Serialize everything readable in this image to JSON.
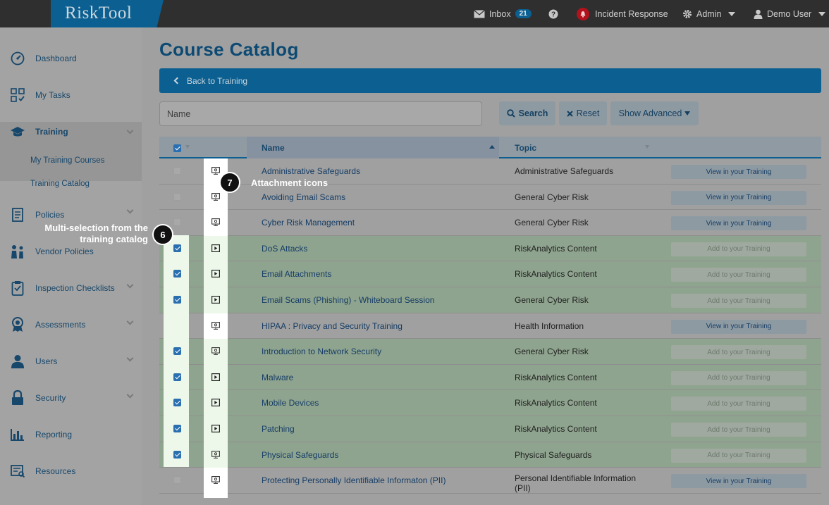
{
  "app": {
    "logo": "RiskTool"
  },
  "topnav": {
    "inbox_label": "Inbox",
    "inbox_count": "21",
    "incident_label": "Incident Response",
    "admin_label": "Admin",
    "user_label": "Demo User"
  },
  "sidebar": {
    "items": [
      {
        "label": "Dashboard",
        "icon": "dashboard-icon"
      },
      {
        "label": "My Tasks",
        "icon": "tasks-icon"
      },
      {
        "label": "Training",
        "icon": "graduation-cap-icon"
      },
      {
        "label": "Policies",
        "icon": "policies-icon"
      },
      {
        "label": "Vendor Policies",
        "icon": "vendor-icon"
      },
      {
        "label": "Inspection Checklists",
        "icon": "clipboard-icon"
      },
      {
        "label": "Assessments",
        "icon": "award-icon"
      },
      {
        "label": "Users",
        "icon": "user-icon"
      },
      {
        "label": "Security",
        "icon": "lock-icon"
      },
      {
        "label": "Reporting",
        "icon": "bar-chart-icon"
      },
      {
        "label": "Resources",
        "icon": "resources-icon"
      }
    ],
    "training_sub": [
      "My Training Courses",
      "Training Catalog"
    ]
  },
  "page": {
    "title": "Course Catalog",
    "back_label": "Back to Training",
    "search_placeholder": "Name",
    "search_btn": "Search",
    "reset_btn": "Reset",
    "advanced_btn": "Show Advanced"
  },
  "table": {
    "headers": {
      "name": "Name",
      "topic": "Topic"
    },
    "rows": [
      {
        "name": "Administrative Safeguards",
        "topic": "Administrative Safeguards",
        "action": "View in your Training",
        "selected": false,
        "icon": "attachment-icon"
      },
      {
        "name": "Avoiding Email Scams",
        "topic": "General Cyber Risk",
        "action": "View in your Training",
        "selected": false,
        "icon": "attachment-icon"
      },
      {
        "name": "Cyber Risk Management",
        "topic": "General Cyber Risk",
        "action": "View in your Training",
        "selected": false,
        "icon": "attachment-icon"
      },
      {
        "name": "DoS Attacks",
        "topic": "RiskAnalytics Content",
        "action": "Add to your Training",
        "selected": true,
        "icon": "video-icon"
      },
      {
        "name": "Email Attachments",
        "topic": "RiskAnalytics Content",
        "action": "Add to your Training",
        "selected": true,
        "icon": "video-icon"
      },
      {
        "name": "Email Scams (Phishing) - Whiteboard Session",
        "topic": "General Cyber Risk",
        "action": "Add to your Training",
        "selected": true,
        "icon": "video-icon"
      },
      {
        "name": "HIPAA : Privacy and Security Training",
        "topic": "Health Information",
        "action": "View in your Training",
        "selected": false,
        "icon": "attachment-icon"
      },
      {
        "name": "Introduction to Network Security",
        "topic": "General Cyber Risk",
        "action": "Add to your Training",
        "selected": true,
        "icon": "attachment-icon"
      },
      {
        "name": "Malware",
        "topic": "RiskAnalytics Content",
        "action": "Add to your Training",
        "selected": true,
        "icon": "video-icon"
      },
      {
        "name": "Mobile Devices",
        "topic": "RiskAnalytics Content",
        "action": "Add to your Training",
        "selected": true,
        "icon": "video-icon"
      },
      {
        "name": "Patching",
        "topic": "RiskAnalytics Content",
        "action": "Add to your Training",
        "selected": true,
        "icon": "video-icon"
      },
      {
        "name": "Physical Safeguards",
        "topic": "Physical Safeguards",
        "action": "Add to your Training",
        "selected": true,
        "icon": "attachment-icon"
      },
      {
        "name": "Protecting Personally Identifiable Informaton (PII)",
        "topic": "Personal Identifiable Information (PII)",
        "action": "View in your Training",
        "selected": false,
        "icon": "attachment-icon"
      }
    ]
  },
  "callouts": [
    {
      "number": "6",
      "text": "Multi-selection from the training catalog"
    },
    {
      "number": "7",
      "text": "Attachment icons"
    }
  ]
}
